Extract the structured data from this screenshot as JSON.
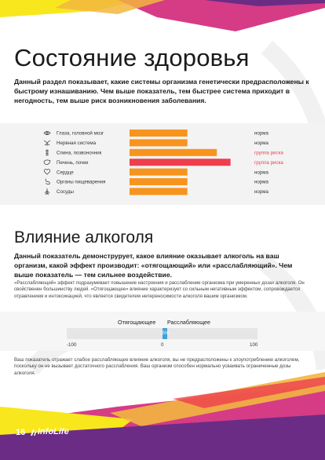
{
  "page": {
    "title": "Состояние здоровья",
    "intro": "Данный раздел показывает, какие системы организма генетически предрасположены к быстрому изнашиванию. Чем выше показатель, тем быстрее система приходит в негодность, тем выше риск возникновения заболевания.",
    "page_number": "16",
    "logo_text": "InfoLife",
    "colors": {
      "accent_orange": "#f7941d",
      "accent_red": "#ee3f4e",
      "accent_pink": "#d63b86",
      "accent_yellow": "#f8e71c",
      "accent_purple": "#6b2c85",
      "scale_blue": "#3fa0dd"
    }
  },
  "chart_data": {
    "type": "bar",
    "orientation": "horizontal",
    "categories": [
      "Глаза, головной мозг",
      "Нервная система",
      "Спина, позвоночник",
      "Печень, почки",
      "Сердце",
      "Органы пищеварения",
      "Сосуды"
    ],
    "icons": [
      "eye-brain-icon",
      "nerve-icon",
      "spine-icon",
      "liver-icon",
      "heart-icon",
      "stomach-icon",
      "vessels-icon"
    ],
    "values": [
      0.55,
      0.55,
      0.83,
      0.96,
      0.55,
      0.55,
      0.55
    ],
    "statuses": [
      "норма",
      "норма",
      "группа риска",
      "группа риска",
      "норма",
      "норма",
      "норма"
    ],
    "bar_colors": [
      "#f7941d",
      "#f7941d",
      "#f7941d",
      "#ee3f4e",
      "#f7941d",
      "#f7941d",
      "#f7941d"
    ],
    "status_colors": [
      "#333333",
      "#333333",
      "#ee3f4e",
      "#ee3f4e",
      "#333333",
      "#333333",
      "#333333"
    ],
    "xlim": [
      0,
      1
    ],
    "grid": false,
    "legend": "none"
  },
  "alcohol": {
    "title": "Влияние алкоголя",
    "intro": "Данный показатель демонструрует, какое влияние оказывает алкоголь на ваш организм, какой эффект производит: «отягощающий» или «расслабляющий». Чем выше показатель — тем сильнее воздействие.",
    "note": "«Расслабляющий» эффект подразумевает повышение настроения и расслабление организма при умеренных дозах алкоголя. Он свойственен большинству людей. «Отягощающее» влияние характеризует со сильным негативным эффектом, сопровождается отравлением и интоксикацией, что является свидетелем непереносимости алкоголя вашим организмом.",
    "scale": {
      "left_label": "Отягощающее",
      "right_label": "Расслабляющее",
      "min_label": "-100",
      "zero_label": "0",
      "max_label": "100",
      "min": -100,
      "max": 100,
      "value": 5,
      "value_label": "5%"
    },
    "result": "Ваш показатель отражает слабое расслабляющее влияние алкоголя, вы не предрасположены к злоупотреблению алкоголем, поскольку он не вызывает достаточного расслабления. Ваш организм способен нормально усваивать ограниченные дозы алкоголя."
  }
}
